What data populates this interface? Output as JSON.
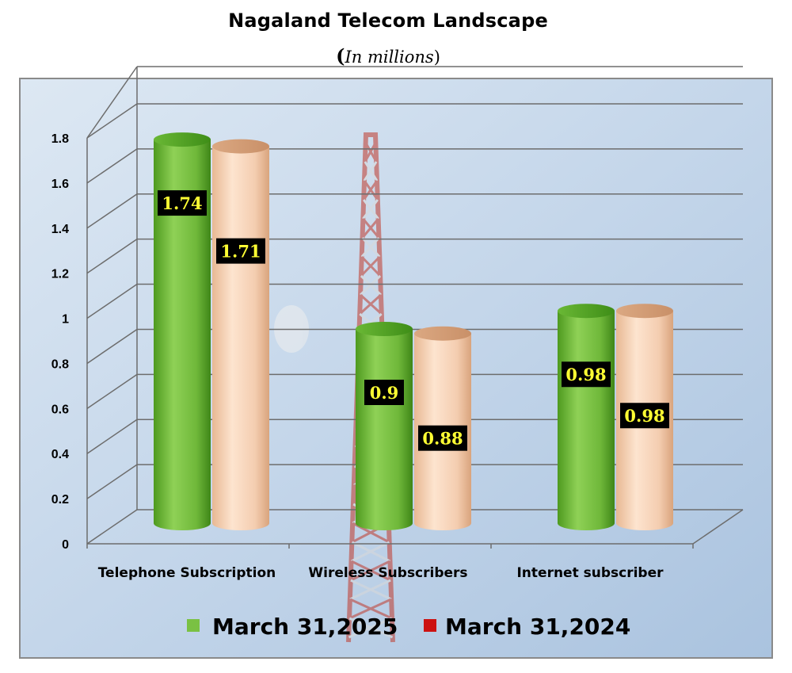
{
  "chart_data": {
    "type": "bar",
    "title": "Nagaland Telecom Landscape",
    "subtitle_open": "(",
    "subtitle_text": "In millions",
    "subtitle_close": ")",
    "categories": [
      "Telephone Subscription",
      "Wireless Subscribers",
      "Internet subscriber"
    ],
    "series": [
      {
        "name": "March 31,2025",
        "values": [
          1.74,
          0.9,
          0.98
        ],
        "labels": [
          "1.74",
          "0.9",
          "0.98"
        ],
        "color": "#7ac143",
        "legend_color": "#7ac143"
      },
      {
        "name": "March 31,2024",
        "values": [
          1.71,
          0.88,
          0.98
        ],
        "labels": [
          "1.71",
          "0.88",
          "0.98"
        ],
        "color": "#f3cfb1",
        "legend_color": "#cc1111"
      }
    ],
    "yticks": [
      "0",
      "0.2",
      "0.4",
      "0.6",
      "0.8",
      "1",
      "1.2",
      "1.4",
      "1.6",
      "1.8"
    ],
    "ylim": [
      0,
      1.8
    ],
    "grid": true,
    "legend_position": "bottom",
    "colors": {
      "plot_background": "#c3d6ea",
      "gridline": "#6d6d6d",
      "label_box": "#000000",
      "label_text": "#ffff33"
    }
  }
}
